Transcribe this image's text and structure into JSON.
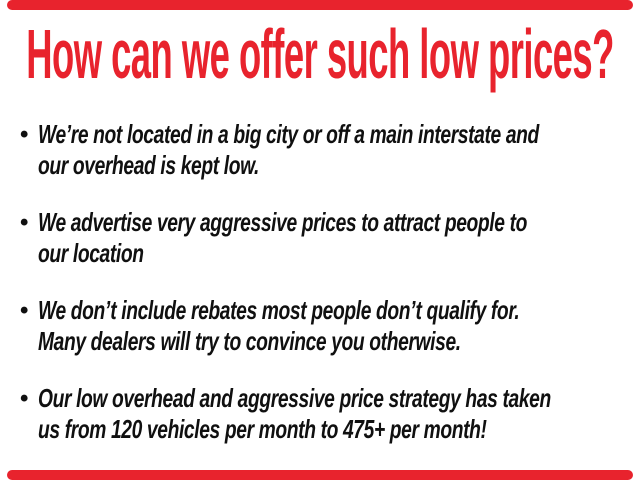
{
  "slide": {
    "title": "How can we offer such low prices?",
    "accent_color": "#e8232d",
    "text_color": "#101010",
    "bullet_glyph": "•",
    "bullets": [
      {
        "line1": "We’re not located in a big city or off a main interstate and",
        "line2": "our overhead is kept low."
      },
      {
        "line1": "We advertise very aggressive prices to attract people to",
        "line2": "our location"
      },
      {
        "line1": "We don’t include rebates most people don’t qualify for.",
        "line2": "Many dealers will try to convince you otherwise."
      },
      {
        "line1": "Our low overhead and aggressive price strategy has taken",
        "line2": "us from 120 vehicles per month to 475+ per month!"
      }
    ]
  }
}
